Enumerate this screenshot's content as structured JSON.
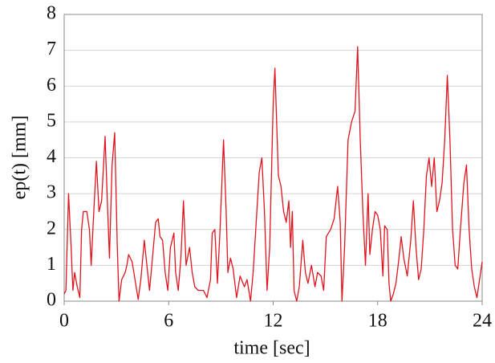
{
  "chart_data": {
    "type": "line",
    "xlabel": "time [sec]",
    "ylabel": "ep(t) [mm]",
    "x": [
      0.0,
      0.1,
      0.25,
      0.4,
      0.5,
      0.6,
      0.75,
      0.9,
      1.0,
      1.1,
      1.3,
      1.45,
      1.55,
      1.7,
      1.85,
      2.0,
      2.15,
      2.35,
      2.5,
      2.6,
      2.75,
      2.9,
      3.05,
      3.15,
      3.3,
      3.5,
      3.6,
      3.7,
      3.9,
      4.1,
      4.25,
      4.4,
      4.6,
      4.75,
      4.9,
      5.05,
      5.25,
      5.4,
      5.5,
      5.65,
      5.8,
      5.95,
      6.1,
      6.3,
      6.4,
      6.55,
      6.7,
      6.85,
      7.0,
      7.2,
      7.35,
      7.5,
      7.7,
      8.0,
      8.2,
      8.4,
      8.5,
      8.65,
      8.8,
      8.95,
      9.15,
      9.3,
      9.4,
      9.55,
      9.7,
      9.9,
      10.1,
      10.35,
      10.5,
      10.7,
      10.85,
      11.0,
      11.2,
      11.35,
      11.5,
      11.65,
      11.8,
      12.0,
      12.1,
      12.3,
      12.45,
      12.6,
      12.75,
      12.9,
      13.0,
      13.1,
      13.2,
      13.35,
      13.5,
      13.7,
      13.85,
      14.0,
      14.2,
      14.4,
      14.55,
      14.75,
      14.9,
      15.05,
      15.3,
      15.5,
      15.7,
      15.85,
      15.95,
      16.1,
      16.3,
      16.5,
      16.7,
      16.85,
      17.0,
      17.15,
      17.3,
      17.45,
      17.55,
      17.7,
      17.85,
      18.0,
      18.15,
      18.3,
      18.4,
      18.55,
      18.65,
      18.75,
      18.9,
      19.05,
      19.2,
      19.35,
      19.5,
      19.7,
      19.9,
      20.05,
      20.2,
      20.35,
      20.5,
      20.65,
      20.8,
      20.95,
      21.1,
      21.25,
      21.4,
      21.55,
      21.7,
      21.85,
      22.0,
      22.15,
      22.3,
      22.45,
      22.6,
      22.75,
      22.95,
      23.1,
      23.25,
      23.4,
      23.55,
      23.7,
      23.85,
      24.0
    ],
    "values": [
      0.2,
      0.3,
      3.0,
      1.5,
      0.3,
      0.8,
      0.4,
      0.1,
      2.0,
      2.5,
      2.5,
      2.0,
      1.0,
      2.5,
      3.9,
      2.5,
      2.8,
      4.6,
      2.5,
      1.2,
      3.8,
      4.7,
      1.5,
      0.0,
      0.6,
      0.8,
      1.0,
      1.3,
      1.1,
      0.5,
      0.05,
      0.6,
      1.7,
      1.0,
      0.3,
      1.1,
      2.2,
      2.3,
      1.8,
      1.7,
      0.8,
      0.3,
      1.5,
      1.9,
      0.8,
      0.3,
      1.2,
      2.8,
      1.0,
      1.5,
      0.8,
      0.4,
      0.3,
      0.3,
      0.1,
      0.6,
      1.9,
      2.0,
      0.5,
      2.0,
      4.5,
      2.5,
      0.8,
      1.2,
      0.9,
      0.1,
      0.7,
      0.4,
      0.6,
      0.0,
      0.8,
      2.0,
      3.6,
      4.0,
      2.5,
      0.3,
      1.5,
      5.5,
      6.5,
      3.5,
      3.2,
      2.5,
      2.2,
      2.8,
      1.5,
      2.5,
      0.3,
      0.0,
      0.4,
      1.7,
      0.8,
      0.5,
      1.0,
      0.4,
      0.8,
      0.7,
      0.3,
      1.8,
      2.0,
      2.3,
      3.2,
      2.2,
      0.0,
      1.5,
      4.5,
      5.0,
      5.3,
      7.1,
      4.5,
      2.5,
      1.0,
      3.0,
      1.3,
      2.0,
      2.5,
      2.4,
      2.0,
      0.7,
      2.1,
      2.0,
      0.5,
      0.0,
      0.2,
      0.5,
      1.1,
      1.8,
      1.2,
      0.7,
      1.7,
      2.8,
      1.5,
      0.6,
      0.9,
      2.0,
      3.5,
      4.0,
      3.2,
      4.0,
      2.5,
      2.8,
      3.3,
      4.5,
      6.3,
      4.5,
      2.0,
      1.0,
      0.9,
      2.0,
      3.3,
      3.8,
      2.0,
      0.9,
      0.4,
      0.1,
      0.6,
      1.1
    ],
    "color": "#e0141e",
    "xlim": [
      0,
      24
    ],
    "xticks": [
      0,
      6,
      12,
      18,
      24
    ],
    "ylim": [
      0,
      8
    ],
    "yticks": [
      0,
      1,
      2,
      3,
      4,
      5,
      6,
      7,
      8
    ],
    "grid": true
  }
}
